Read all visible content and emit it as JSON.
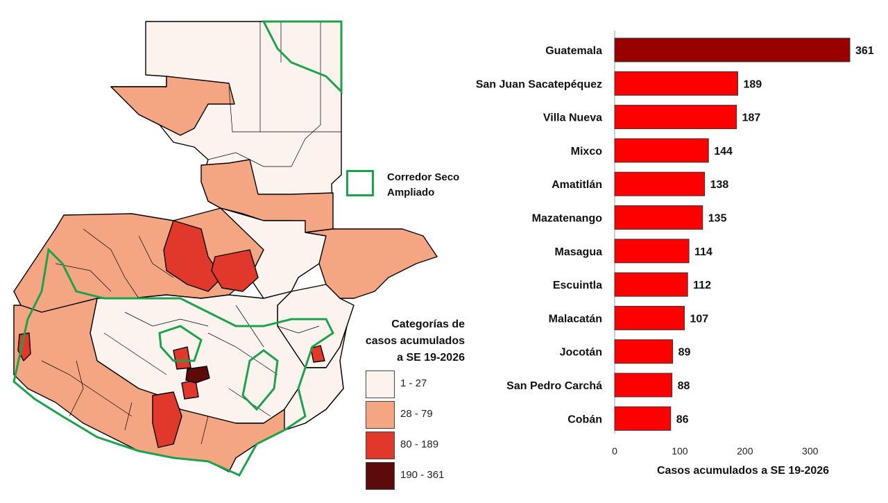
{
  "map": {
    "corridor_legend": {
      "line1": "Corredor Seco",
      "line2": "Ampliado",
      "color": "#1aa34a"
    },
    "legend": {
      "title_lines": [
        "Categorías de",
        "casos acumulados",
        "a SE 19-2026"
      ],
      "items": [
        {
          "label": "1 - 27",
          "color": "#fdf3ee"
        },
        {
          "label": "28 - 79",
          "color": "#f4a582"
        },
        {
          "label": "80 - 189",
          "color": "#e0392b"
        },
        {
          "label": "190 - 361",
          "color": "#5c0a0a"
        }
      ]
    }
  },
  "chart_data": {
    "type": "bar",
    "orientation": "horizontal",
    "categories": [
      "Guatemala",
      "San Juan Sacatepéquez",
      "Villa Nueva",
      "Mixco",
      "Amatitlán",
      "Mazatenango",
      "Masagua",
      "Escuintla",
      "Malacatán",
      "Jocotán",
      "San Pedro Carchá",
      "Cobán"
    ],
    "values": [
      361,
      189,
      187,
      144,
      138,
      135,
      114,
      112,
      107,
      89,
      88,
      86
    ],
    "bar_colors": [
      "#990000",
      "#ff0000",
      "#ff0000",
      "#ff0000",
      "#ff0000",
      "#ff0000",
      "#ff0000",
      "#ff0000",
      "#ff0000",
      "#ff0000",
      "#ff0000",
      "#ff0000"
    ],
    "xlabel": "Casos acumulados a SE 19-2026",
    "xticks": [
      0,
      100,
      200,
      300
    ],
    "xlim": [
      0,
      361
    ],
    "data_labels": true
  }
}
